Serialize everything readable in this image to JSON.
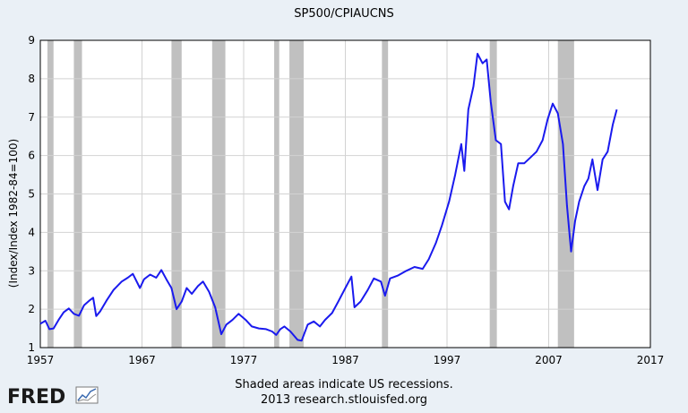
{
  "chart_data": {
    "type": "line",
    "title": "SP500/CPIAUCNS",
    "ylabel": "(Index/Index 1982-84=100)",
    "xlabel": "",
    "xlim": [
      1957,
      2017
    ],
    "ylim": [
      1,
      9
    ],
    "x_ticks": [
      "1957",
      "1967",
      "1977",
      "1987",
      "1997",
      "2007",
      "2017"
    ],
    "y_ticks": [
      "1",
      "2",
      "3",
      "4",
      "5",
      "6",
      "7",
      "8",
      "9"
    ],
    "grid": true,
    "recessions": [
      [
        1957.7,
        1958.3
      ],
      [
        1960.3,
        1961.1
      ],
      [
        1969.9,
        1970.9
      ],
      [
        1973.9,
        1975.2
      ],
      [
        1980.0,
        1980.5
      ],
      [
        1981.5,
        1982.9
      ],
      [
        1990.6,
        1991.2
      ],
      [
        2001.2,
        2001.9
      ],
      [
        2007.9,
        2009.5
      ]
    ],
    "series": [
      {
        "color": "#1a1aee",
        "points": [
          [
            1957.0,
            1.62
          ],
          [
            1957.5,
            1.7
          ],
          [
            1957.9,
            1.48
          ],
          [
            1958.3,
            1.5
          ],
          [
            1958.8,
            1.72
          ],
          [
            1959.3,
            1.92
          ],
          [
            1959.8,
            2.02
          ],
          [
            1960.3,
            1.88
          ],
          [
            1960.8,
            1.83
          ],
          [
            1961.3,
            2.1
          ],
          [
            1961.8,
            2.22
          ],
          [
            1962.2,
            2.3
          ],
          [
            1962.5,
            1.82
          ],
          [
            1962.9,
            1.95
          ],
          [
            1963.5,
            2.22
          ],
          [
            1964.2,
            2.5
          ],
          [
            1965.0,
            2.72
          ],
          [
            1965.6,
            2.82
          ],
          [
            1966.1,
            2.92
          ],
          [
            1966.8,
            2.55
          ],
          [
            1967.2,
            2.78
          ],
          [
            1967.8,
            2.9
          ],
          [
            1968.4,
            2.82
          ],
          [
            1968.9,
            3.02
          ],
          [
            1969.4,
            2.78
          ],
          [
            1969.9,
            2.55
          ],
          [
            1970.4,
            2.0
          ],
          [
            1970.9,
            2.2
          ],
          [
            1971.4,
            2.55
          ],
          [
            1971.9,
            2.4
          ],
          [
            1972.5,
            2.6
          ],
          [
            1973.0,
            2.72
          ],
          [
            1973.6,
            2.45
          ],
          [
            1974.2,
            2.05
          ],
          [
            1974.8,
            1.35
          ],
          [
            1975.3,
            1.6
          ],
          [
            1975.9,
            1.72
          ],
          [
            1976.5,
            1.88
          ],
          [
            1977.2,
            1.72
          ],
          [
            1977.8,
            1.55
          ],
          [
            1978.5,
            1.5
          ],
          [
            1979.2,
            1.48
          ],
          [
            1979.8,
            1.42
          ],
          [
            1980.2,
            1.33
          ],
          [
            1980.6,
            1.48
          ],
          [
            1981.0,
            1.55
          ],
          [
            1981.6,
            1.42
          ],
          [
            1982.3,
            1.2
          ],
          [
            1982.7,
            1.18
          ],
          [
            1983.3,
            1.6
          ],
          [
            1983.9,
            1.68
          ],
          [
            1984.5,
            1.55
          ],
          [
            1985.0,
            1.72
          ],
          [
            1985.7,
            1.9
          ],
          [
            1986.3,
            2.2
          ],
          [
            1987.0,
            2.55
          ],
          [
            1987.6,
            2.85
          ],
          [
            1987.9,
            2.05
          ],
          [
            1988.5,
            2.2
          ],
          [
            1989.2,
            2.5
          ],
          [
            1989.8,
            2.8
          ],
          [
            1990.5,
            2.72
          ],
          [
            1990.9,
            2.35
          ],
          [
            1991.4,
            2.8
          ],
          [
            1992.2,
            2.88
          ],
          [
            1993.0,
            3.0
          ],
          [
            1993.8,
            3.1
          ],
          [
            1994.6,
            3.05
          ],
          [
            1995.2,
            3.3
          ],
          [
            1995.9,
            3.72
          ],
          [
            1996.5,
            4.18
          ],
          [
            1997.2,
            4.8
          ],
          [
            1997.8,
            5.5
          ],
          [
            1998.4,
            6.3
          ],
          [
            1998.7,
            5.6
          ],
          [
            1999.1,
            7.2
          ],
          [
            1999.6,
            7.8
          ],
          [
            2000.0,
            8.65
          ],
          [
            2000.5,
            8.4
          ],
          [
            2000.9,
            8.5
          ],
          [
            2001.3,
            7.4
          ],
          [
            2001.8,
            6.4
          ],
          [
            2002.3,
            6.3
          ],
          [
            2002.7,
            4.8
          ],
          [
            2003.1,
            4.6
          ],
          [
            2003.5,
            5.2
          ],
          [
            2004.0,
            5.8
          ],
          [
            2004.6,
            5.8
          ],
          [
            2005.2,
            5.95
          ],
          [
            2005.8,
            6.1
          ],
          [
            2006.4,
            6.4
          ],
          [
            2006.9,
            6.95
          ],
          [
            2007.4,
            7.35
          ],
          [
            2007.9,
            7.1
          ],
          [
            2008.4,
            6.3
          ],
          [
            2008.8,
            4.7
          ],
          [
            2009.2,
            3.5
          ],
          [
            2009.6,
            4.3
          ],
          [
            2010.0,
            4.8
          ],
          [
            2010.5,
            5.2
          ],
          [
            2010.9,
            5.4
          ],
          [
            2011.3,
            5.9
          ],
          [
            2011.8,
            5.1
          ],
          [
            2012.3,
            5.9
          ],
          [
            2012.8,
            6.1
          ],
          [
            2013.3,
            6.8
          ],
          [
            2013.7,
            7.2
          ]
        ]
      }
    ]
  },
  "footer": {
    "note": "Shaded areas indicate US recessions.",
    "source": "2013 research.stlouisfed.org",
    "logo_text": "FRED"
  }
}
